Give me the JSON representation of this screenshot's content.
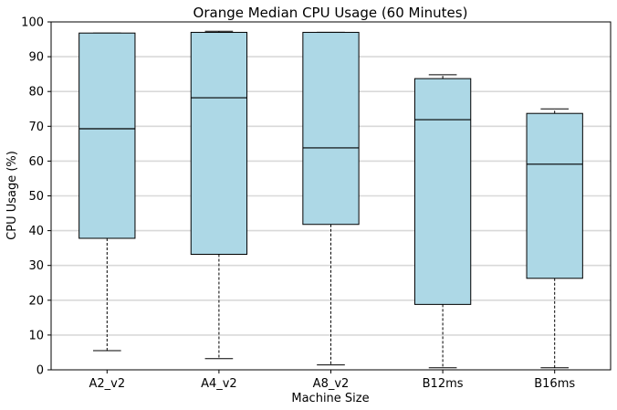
{
  "chart_data": {
    "type": "box",
    "title": "Orange Median CPU Usage (60 Minutes)",
    "xlabel": "Machine Size",
    "ylabel": "CPU Usage (%)",
    "ylim": [
      0,
      100
    ],
    "yticks": [
      0,
      10,
      20,
      30,
      40,
      50,
      60,
      70,
      80,
      90,
      100
    ],
    "grid": "horizontal",
    "box_color": "#add8e6",
    "categories": [
      "A2_v2",
      "A4_v2",
      "A8_v2",
      "B12ms",
      "B16ms"
    ],
    "boxes": [
      {
        "category": "A2_v2",
        "whisker_low": 5.5,
        "q1": 37.8,
        "median": 69.3,
        "q3": 96.8,
        "whisker_high": 96.8
      },
      {
        "category": "A4_v2",
        "whisker_low": 3.2,
        "q1": 33.2,
        "median": 78.2,
        "q3": 97.0,
        "whisker_high": 97.3
      },
      {
        "category": "A8_v2",
        "whisker_low": 1.4,
        "q1": 41.8,
        "median": 63.8,
        "q3": 97.0,
        "whisker_high": 97.0
      },
      {
        "category": "B12ms",
        "whisker_low": 0.6,
        "q1": 18.8,
        "median": 71.9,
        "q3": 83.7,
        "whisker_high": 84.8
      },
      {
        "category": "B16ms",
        "whisker_low": 0.6,
        "q1": 26.3,
        "median": 59.1,
        "q3": 73.7,
        "whisker_high": 75.0
      }
    ]
  }
}
